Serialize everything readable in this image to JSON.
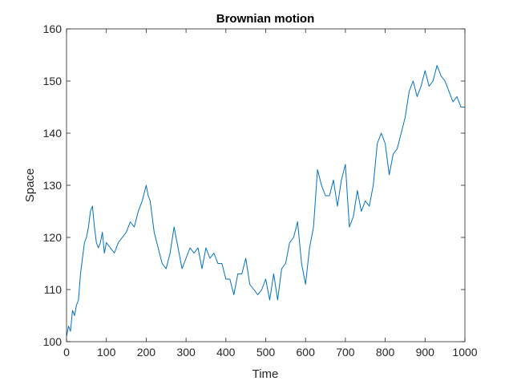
{
  "chart_data": {
    "type": "line",
    "title": "Brownian motion",
    "xlabel": "Time",
    "ylabel": "Space",
    "xlim": [
      0,
      1000
    ],
    "ylim": [
      100,
      160
    ],
    "xticks": [
      0,
      100,
      200,
      300,
      400,
      500,
      600,
      700,
      800,
      900,
      1000
    ],
    "yticks": [
      100,
      110,
      120,
      130,
      140,
      150,
      160
    ],
    "grid": false,
    "box": true,
    "line_color": "#0072BD",
    "series": [
      {
        "x": [
          0,
          5,
          10,
          15,
          20,
          25,
          30,
          35,
          40,
          45,
          50,
          55,
          60,
          65,
          70,
          75,
          80,
          85,
          90,
          95,
          100,
          110,
          120,
          130,
          140,
          150,
          160,
          170,
          180,
          190,
          200,
          205,
          210,
          215,
          220,
          230,
          240,
          250,
          260,
          270,
          280,
          290,
          300,
          310,
          320,
          330,
          340,
          350,
          360,
          370,
          380,
          390,
          400,
          410,
          420,
          430,
          440,
          450,
          460,
          470,
          480,
          490,
          500,
          510,
          520,
          530,
          540,
          550,
          560,
          570,
          580,
          590,
          600,
          610,
          620,
          630,
          640,
          650,
          660,
          670,
          680,
          690,
          700,
          710,
          720,
          730,
          740,
          750,
          760,
          770,
          780,
          790,
          800,
          810,
          820,
          830,
          840,
          850,
          860,
          870,
          880,
          890,
          900,
          910,
          920,
          930,
          940,
          950,
          960,
          970,
          980,
          990,
          1000
        ],
        "y": [
          101,
          103,
          102,
          106,
          105,
          107,
          108,
          113,
          116,
          119,
          120,
          122,
          125,
          126,
          122,
          119,
          118,
          119,
          121,
          117,
          119,
          118,
          117,
          119,
          120,
          121,
          123,
          122,
          125,
          127,
          130,
          128,
          127,
          124,
          121,
          118,
          115,
          114,
          117,
          122,
          118,
          114,
          116,
          118,
          117,
          118,
          114,
          118,
          116,
          117,
          115,
          115,
          112,
          112,
          109,
          113,
          113,
          116,
          111,
          110,
          109,
          110,
          112,
          108,
          113,
          108,
          114,
          115,
          119,
          120,
          123,
          115,
          111,
          118,
          122,
          133,
          130,
          128,
          128,
          131,
          126,
          131,
          134,
          122,
          124,
          129,
          125,
          127,
          126,
          130,
          138,
          140,
          138,
          132,
          136,
          137,
          140,
          143,
          148,
          150,
          147,
          149,
          152,
          149,
          150,
          153,
          151,
          150,
          148,
          146,
          147,
          145,
          145
        ]
      }
    ]
  }
}
